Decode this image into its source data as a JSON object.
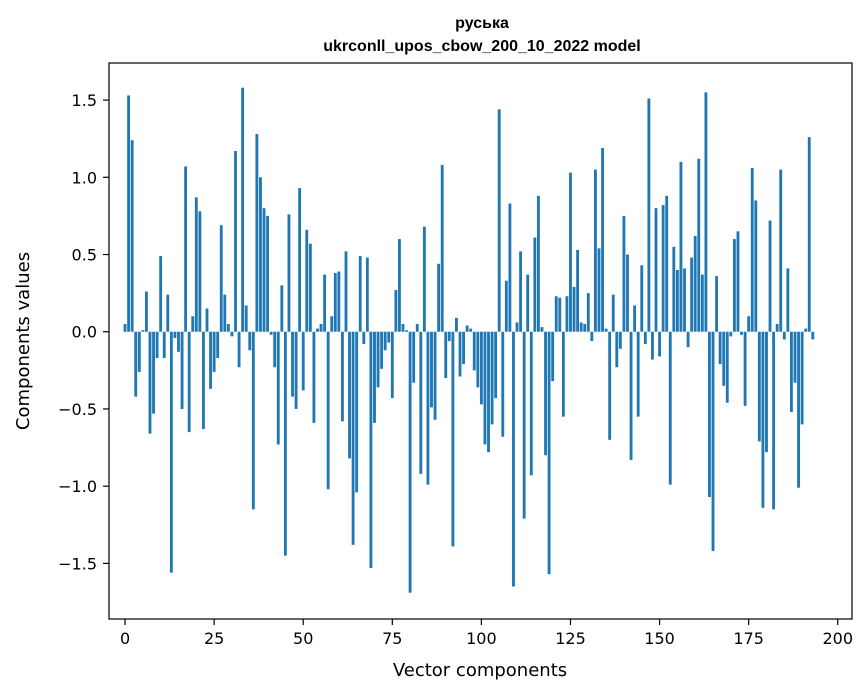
{
  "chart_data": {
    "type": "bar",
    "title": "руська",
    "subtitle": "ukrconll_upos_cbow_200_10_2022 model",
    "xlabel": "Vector components",
    "ylabel": "Components values",
    "xlim": [
      -4.5,
      204
    ],
    "ylim": [
      -1.86,
      1.74
    ],
    "xticks": [
      0,
      25,
      50,
      75,
      100,
      125,
      150,
      175,
      200
    ],
    "yticks": [
      -1.5,
      -1.0,
      -0.5,
      0.0,
      0.5,
      1.0,
      1.5
    ],
    "ytick_labels": [
      "−1.5",
      "−1.0",
      "−0.5",
      "0.0",
      "0.5",
      "1.0",
      "1.5"
    ],
    "bar_color": "#1f77b4",
    "grid": false,
    "values": [
      0.05,
      1.53,
      1.24,
      -0.42,
      -0.26,
      0.01,
      0.26,
      -0.66,
      -0.53,
      -0.17,
      0.49,
      -0.17,
      0.24,
      -1.56,
      -0.04,
      -0.13,
      -0.5,
      1.07,
      -0.65,
      0.1,
      0.87,
      0.78,
      -0.63,
      0.15,
      -0.37,
      -0.26,
      -0.17,
      0.69,
      0.24,
      0.05,
      -0.03,
      1.17,
      -0.23,
      1.58,
      0.17,
      -0.12,
      -1.15,
      1.28,
      1.0,
      0.8,
      0.75,
      -0.02,
      -0.23,
      -0.73,
      0.3,
      -1.45,
      0.76,
      -0.42,
      -0.5,
      0.93,
      -0.38,
      0.66,
      0.57,
      -0.59,
      0.02,
      0.05,
      0.37,
      -1.02,
      0.1,
      0.38,
      0.39,
      -0.58,
      0.52,
      -0.82,
      -1.38,
      -1.04,
      0.49,
      -0.08,
      0.48,
      -1.53,
      -0.59,
      -0.36,
      -0.24,
      -0.12,
      -0.07,
      -0.43,
      0.27,
      0.6,
      0.05,
      0.01,
      -1.69,
      -0.33,
      0.05,
      -0.92,
      0.68,
      -0.99,
      -0.49,
      -0.57,
      0.44,
      1.08,
      -0.3,
      -0.06,
      -1.39,
      0.09,
      -0.29,
      -0.21,
      0.04,
      0.02,
      -0.25,
      -0.36,
      -0.47,
      -0.73,
      -0.78,
      -0.6,
      -0.43,
      1.44,
      -0.68,
      0.33,
      0.83,
      -1.65,
      0.06,
      0.52,
      -1.21,
      0.37,
      -0.93,
      0.61,
      0.88,
      0.03,
      -0.8,
      -1.57,
      -0.32,
      0.23,
      0.22,
      -0.55,
      0.23,
      1.03,
      0.29,
      0.53,
      0.06,
      0.05,
      0.25,
      -0.06,
      1.05,
      0.54,
      1.19,
      0.02,
      -0.7,
      0.24,
      -0.23,
      -0.11,
      0.75,
      0.5,
      -0.83,
      0.17,
      -0.55,
      0.43,
      -0.08,
      1.51,
      -0.18,
      0.8,
      -0.16,
      0.82,
      0.88,
      -0.99,
      0.55,
      0.4,
      1.1,
      0.41,
      -0.1,
      0.48,
      0.62,
      1.12,
      0.37,
      1.55,
      -1.07,
      -1.42,
      0.36,
      -0.21,
      -0.35,
      -0.46,
      -0.03,
      0.6,
      0.65,
      -0.02,
      -0.48,
      0.1,
      1.06,
      0.85,
      -0.71,
      -1.14,
      -0.78,
      0.72,
      -1.15,
      0.05,
      1.05,
      -0.05,
      0.41,
      -0.52,
      -0.33,
      -1.01,
      -0.6,
      0.02,
      1.26,
      -0.05
    ]
  }
}
